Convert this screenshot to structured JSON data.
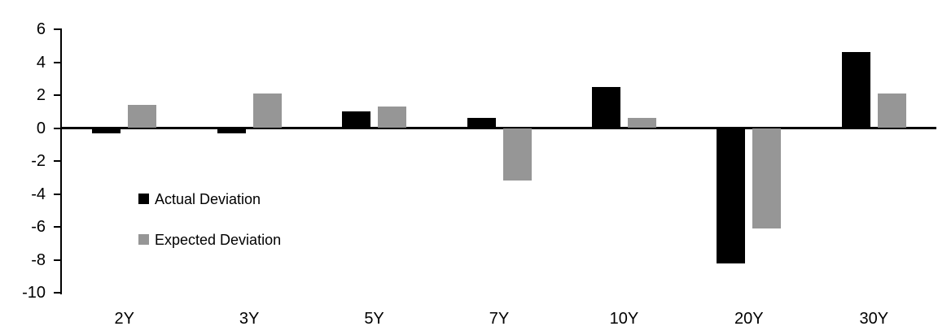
{
  "chart_data": {
    "type": "bar",
    "title": "",
    "xlabel": "",
    "ylabel": "",
    "categories": [
      "2Y",
      "3Y",
      "5Y",
      "7Y",
      "10Y",
      "20Y",
      "30Y"
    ],
    "series": [
      {
        "name": "Actual Deviation",
        "color": "#000000",
        "values": [
          -0.3,
          -0.3,
          1.0,
          0.6,
          2.5,
          -8.2,
          4.6
        ]
      },
      {
        "name": "Expected Deviation",
        "color": "#969696",
        "values": [
          1.4,
          2.1,
          1.3,
          -3.2,
          0.6,
          -6.1,
          2.1
        ]
      }
    ],
    "ylim": [
      -10,
      6
    ],
    "yticks": [
      6,
      4,
      2,
      0,
      -2,
      -4,
      -6,
      -8,
      -10
    ],
    "grid": false,
    "legend_position": "inside-left",
    "axis_color": "#000000",
    "background_color": "#ffffff"
  }
}
